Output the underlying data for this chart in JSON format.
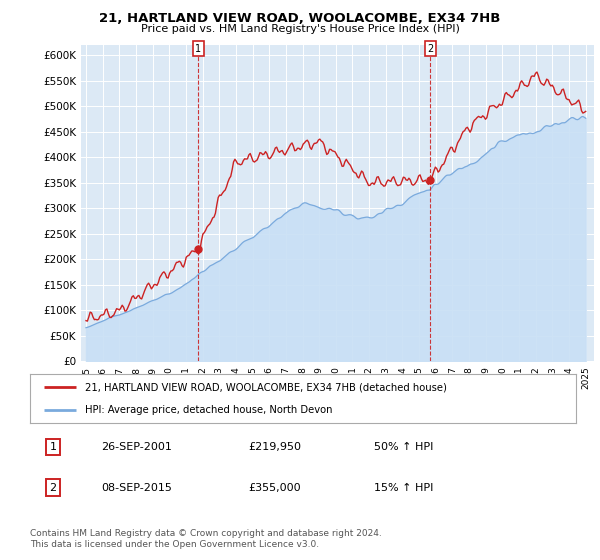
{
  "title": "21, HARTLAND VIEW ROAD, WOOLACOMBE, EX34 7HB",
  "subtitle": "Price paid vs. HM Land Registry's House Price Index (HPI)",
  "legend_line1": "21, HARTLAND VIEW ROAD, WOOLACOMBE, EX34 7HB (detached house)",
  "legend_line2": "HPI: Average price, detached house, North Devon",
  "annotation1_date": "26-SEP-2001",
  "annotation1_price": "£219,950",
  "annotation1_hpi": "50% ↑ HPI",
  "annotation1_year": 2001.75,
  "annotation1_value": 219950,
  "annotation2_date": "08-SEP-2015",
  "annotation2_price": "£355,000",
  "annotation2_hpi": "15% ↑ HPI",
  "annotation2_year": 2015.67,
  "annotation2_value": 355000,
  "footnote": "Contains HM Land Registry data © Crown copyright and database right 2024.\nThis data is licensed under the Open Government Licence v3.0.",
  "hpi_color": "#7aaadd",
  "hpi_fill_color": "#c8dff5",
  "price_color": "#cc2222",
  "background_color": "#dce9f5",
  "plot_bg_color": "#dce9f5",
  "ylim": [
    0,
    620000
  ],
  "yticks": [
    0,
    50000,
    100000,
    150000,
    200000,
    250000,
    300000,
    350000,
    400000,
    450000,
    500000,
    550000,
    600000
  ],
  "ytick_labels": [
    "£0",
    "£50K",
    "£100K",
    "£150K",
    "£200K",
    "£250K",
    "£300K",
    "£350K",
    "£400K",
    "£450K",
    "£500K",
    "£550K",
    "£600K"
  ],
  "xmin": 1995,
  "xmax": 2025
}
